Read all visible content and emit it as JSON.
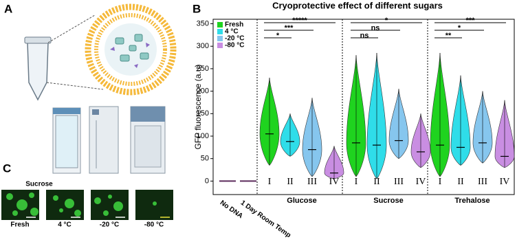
{
  "panel_labels": [
    "A",
    "B",
    "C"
  ],
  "panel_c": {
    "title": "Sucrose",
    "images": [
      {
        "label": "Fresh"
      },
      {
        "label": "4 °C"
      },
      {
        "label": "-20 °C"
      },
      {
        "label": "-80 °C"
      }
    ]
  },
  "chart_data": {
    "type": "violin",
    "title": "Cryoprotective effect of different sugars",
    "ylabel": "GFP fluorescence (a.u)",
    "ylim": [
      -30,
      360
    ],
    "yticks": [
      0,
      50,
      100,
      150,
      200,
      250,
      300,
      350
    ],
    "series": [
      {
        "name": "Fresh",
        "color": "#1fd31f"
      },
      {
        "name": "4 °C",
        "color": "#2fdde9"
      },
      {
        "name": "-20 °C",
        "color": "#86c6ee"
      },
      {
        "name": "-80 °C",
        "color": "#c98ee2"
      }
    ],
    "groups": [
      {
        "label": "No DNA",
        "violins": [
          {
            "series": 3,
            "min": -2,
            "median": 0,
            "max": 2
          }
        ]
      },
      {
        "label": "1 Day Room Temp",
        "violins": [
          {
            "series": 3,
            "min": -2,
            "median": 0,
            "max": 2
          }
        ]
      },
      {
        "label": "Glucose",
        "numerals": [
          "I",
          "II",
          "III",
          "IV"
        ],
        "violins": [
          {
            "series": 0,
            "min": 35,
            "median": 105,
            "max": 230
          },
          {
            "series": 1,
            "min": 55,
            "median": 88,
            "max": 150
          },
          {
            "series": 2,
            "min": 10,
            "median": 70,
            "max": 185
          },
          {
            "series": 3,
            "min": 5,
            "median": 18,
            "max": 78
          }
        ],
        "significance": [
          {
            "label": "*****",
            "from": 0,
            "to": 3
          },
          {
            "label": "***",
            "from": 0,
            "to": 2
          },
          {
            "label": "*",
            "from": 0,
            "to": 1
          }
        ]
      },
      {
        "label": "Sucrose",
        "numerals": [
          "I",
          "II",
          "III",
          "IV"
        ],
        "violins": [
          {
            "series": 0,
            "min": 10,
            "median": 85,
            "max": 280
          },
          {
            "series": 1,
            "min": 5,
            "median": 80,
            "max": 285
          },
          {
            "series": 2,
            "min": 50,
            "median": 90,
            "max": 205
          },
          {
            "series": 3,
            "min": 30,
            "median": 65,
            "max": 150
          }
        ],
        "significance": [
          {
            "label": "*",
            "from": 0,
            "to": 3
          },
          {
            "label": "ns",
            "from": 0,
            "to": 2
          },
          {
            "label": "ns",
            "from": 0,
            "to": 1
          }
        ]
      },
      {
        "label": "Trehalose",
        "numerals": [
          "I",
          "II",
          "III",
          "IV"
        ],
        "violins": [
          {
            "series": 0,
            "min": 10,
            "median": 80,
            "max": 285
          },
          {
            "series": 1,
            "min": 35,
            "median": 75,
            "max": 235
          },
          {
            "series": 2,
            "min": 40,
            "median": 85,
            "max": 200
          },
          {
            "series": 3,
            "min": 30,
            "median": 55,
            "max": 180
          }
        ],
        "significance": [
          {
            "label": "***",
            "from": 0,
            "to": 3
          },
          {
            "label": "*",
            "from": 0,
            "to": 2
          },
          {
            "label": "**",
            "from": 0,
            "to": 1
          }
        ]
      }
    ]
  }
}
